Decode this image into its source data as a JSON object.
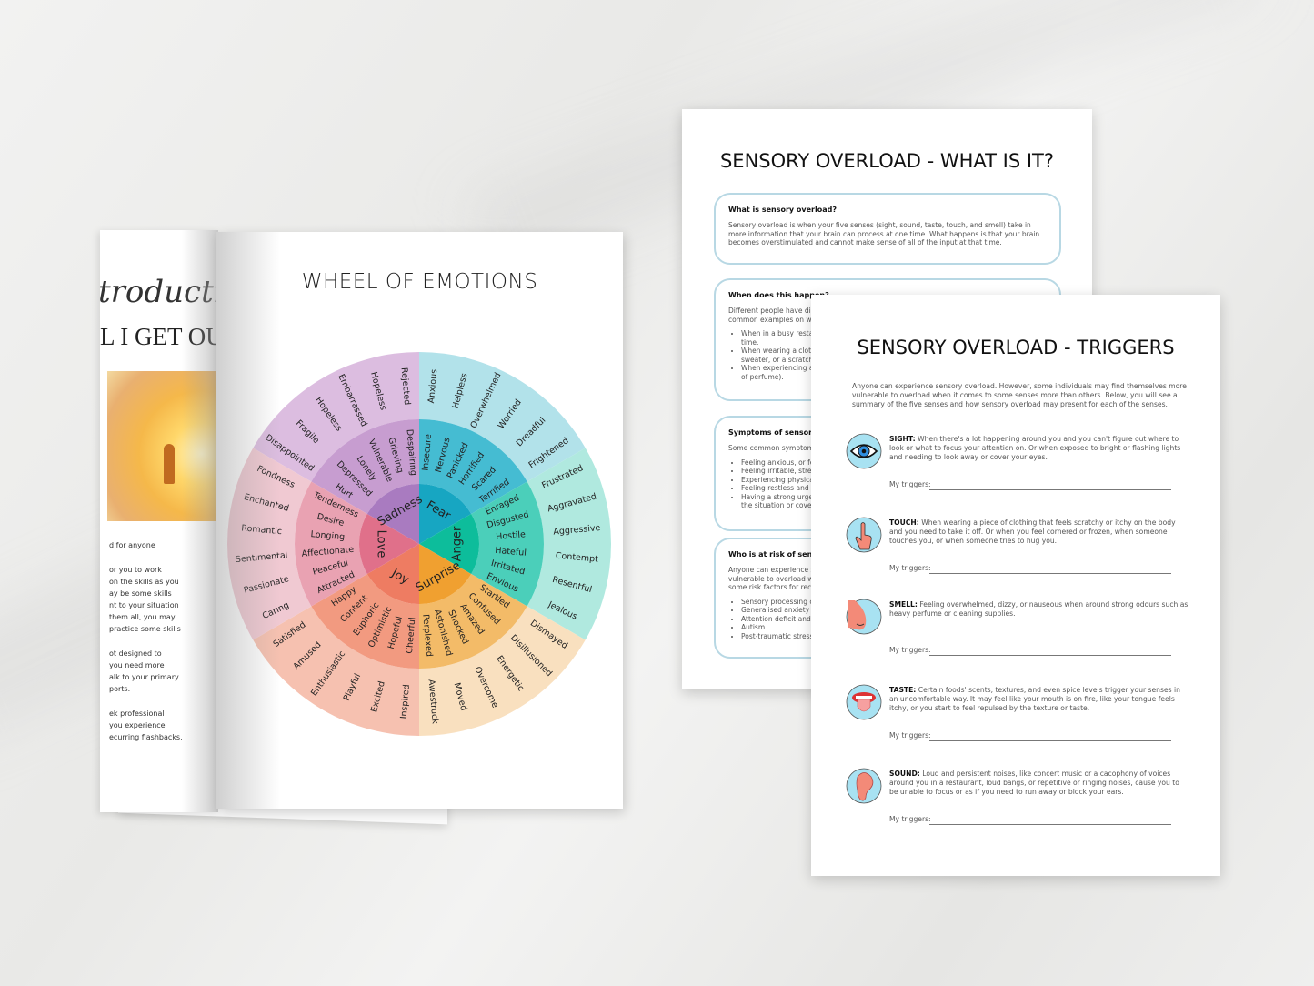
{
  "magazine": {
    "script_heading": "troductio",
    "heading": "L I GET OU",
    "paragraphs": [
      [
        "d for anyone"
      ],
      [
        "or you to work",
        "on the skills as you",
        "ay be some skills",
        "nt to your situation",
        "them all, you may",
        "practice some skills"
      ],
      [
        "ot designed to",
        "you need more",
        "alk to your primary",
        "ports."
      ],
      [
        "ek professional",
        "you experience",
        "ecurring flashbacks,"
      ]
    ]
  },
  "wheel_page": {
    "title": "WHEEL OF EMOTIONS",
    "sectors": [
      {
        "core": "Sadness",
        "color_core": "#a97bc0",
        "color_mid": "#c79dd0",
        "color_outer": "#dcbde0",
        "middle": [
          "Hurt",
          "Depressed",
          "Lonely",
          "Vulnerable",
          "Grieving",
          "Despairing"
        ],
        "outer": [
          "Disappointed",
          "Fragile",
          "Hopeless",
          "Embarrassed",
          "Hopeless",
          "Rejected"
        ]
      },
      {
        "core": "Fear",
        "color_core": "#17a6c2",
        "color_mid": "#45bcd2",
        "color_outer": "#b2e2ea",
        "middle": [
          "Insecure",
          "Nervous",
          "Panicked",
          "Horrified",
          "Scared",
          "Terrified"
        ],
        "outer": [
          "Anxious",
          "Helpless",
          "Overwhelmed",
          "Worried",
          "Dreadful",
          "Frightened"
        ]
      },
      {
        "core": "Anger",
        "color_core": "#0dbd9b",
        "color_mid": "#4bcfba",
        "color_outer": "#b0e9df",
        "middle": [
          "Enraged",
          "Disgusted",
          "Hostile",
          "Hateful",
          "Irritated",
          "Envious"
        ],
        "outer": [
          "Frustrated",
          "Aggravated",
          "Aggressive",
          "Contempt",
          "Resentful",
          "Jealous"
        ]
      },
      {
        "core": "Surprise",
        "color_core": "#f0a030",
        "color_mid": "#f3bb68",
        "color_outer": "#f9e0bf",
        "middle": [
          "Startled",
          "Confused",
          "Amazed",
          "Shocked",
          "Astonished",
          "Perplexed"
        ],
        "outer": [
          "Dismayed",
          "Disillusioned",
          "Energetic",
          "Overcome",
          "Moved",
          "Awestruck"
        ]
      },
      {
        "core": "Joy",
        "color_core": "#ee7c62",
        "color_mid": "#f29a80",
        "color_outer": "#f6c1b0",
        "middle": [
          "Cheerful",
          "Hopeful",
          "Optimistic",
          "Euphoric",
          "Content",
          "Happy"
        ],
        "outer": [
          "Inspired",
          "Excited",
          "Playful",
          "Enthusiastic",
          "Amused",
          "Satisfied"
        ]
      },
      {
        "core": "Love",
        "color_core": "#e0708a",
        "color_mid": "#e9a2b2",
        "color_outer": "#f0c9d2",
        "middle": [
          "Attracted",
          "Peaceful",
          "Affectionate",
          "Longing",
          "Desire",
          "Tenderness"
        ],
        "outer": [
          "Caring",
          "Passionate",
          "Sentimental",
          "Romantic",
          "Enchanted",
          "Fondness"
        ]
      }
    ]
  },
  "page_what": {
    "title": "SENSORY OVERLOAD - WHAT IS IT?",
    "cards": [
      {
        "heading": "What is sensory overload?",
        "body": "Sensory overload is when your five senses (sight, sound, taste, touch, and smell) take in more information that your brain can process at one time. What happens is that your brain becomes overstimulated and cannot make sense of all of the input at that time.",
        "bullets": []
      },
      {
        "heading": "When does this happen?",
        "body": "Different people have di\ncommon examples on w",
        "bullets": [
          "When in a busy resta\ntime.",
          "When wearing a cloth\nsweater, or a scratch",
          "When experiencing a\nof perfume)."
        ]
      },
      {
        "heading": "Symptoms of sensory",
        "body": "Some common symptom",
        "bullets": [
          "Feeling anxious, or fe",
          "Feeling irritable, stre",
          "Experiencing physica",
          "Feeling restless and",
          "Having a strong urge\nthe situation or cove"
        ]
      },
      {
        "heading": "Who is at risk of senso",
        "body": "Anyone can experience s\nvulnerable to overload w\nsome risk factors for rec",
        "bullets": [
          "Sensory processing c",
          "Generalised anxiety c",
          "Attention deficit and",
          "Autism",
          "Post-traumatic stress"
        ]
      }
    ]
  },
  "page_triggers": {
    "title": "SENSORY OVERLOAD - TRIGGERS",
    "intro": "Anyone can experience sensory overload. However, some individuals may find themselves more vulnerable to overload when it comes to some senses more than others. Below, you will see a summary of the five senses and how sensory overload may present for each of the senses.",
    "senses": [
      {
        "icon": "eye-icon",
        "label": "SIGHT:",
        "text": "When there's a lot happening around you and you can't figure out where to look or what to focus your attention on. Or when exposed to bright or flashing lights and needing to look away or cover your eyes.",
        "trigger_label": "My triggers:"
      },
      {
        "icon": "hand-pointing-icon",
        "label": "TOUCH:",
        "text": "When wearing a piece of clothing that feels scratchy or itchy on the body and you need to take it off. Or when you feel cornered or frozen, when someone touches you, or when someone tries to hug you.",
        "trigger_label": "My triggers:"
      },
      {
        "icon": "nose-icon",
        "label": "SMELL:",
        "text": "Feeling overwhelmed, dizzy, or nauseous when around strong odours such as heavy perfume or cleaning supplies.",
        "trigger_label": "My triggers:"
      },
      {
        "icon": "tongue-icon",
        "label": "TASTE:",
        "text": "Certain foods' scents, textures, and even spice levels trigger your senses in an uncomfortable way. It may feel like your mouth is on fire, like your tongue feels itchy, or you start to feel repulsed by the texture or taste.",
        "trigger_label": "My triggers:"
      },
      {
        "icon": "ear-icon",
        "label": "SOUND:",
        "text": "Loud and persistent noises, like concert music or a cacophony of voices around you in a restaurant, loud bangs, or repetitive or ringing noises, cause you to be unable to focus or as if you need to run away or block your ears.",
        "trigger_label": "My triggers:"
      }
    ],
    "icon_bg": "#a8e2f2"
  }
}
